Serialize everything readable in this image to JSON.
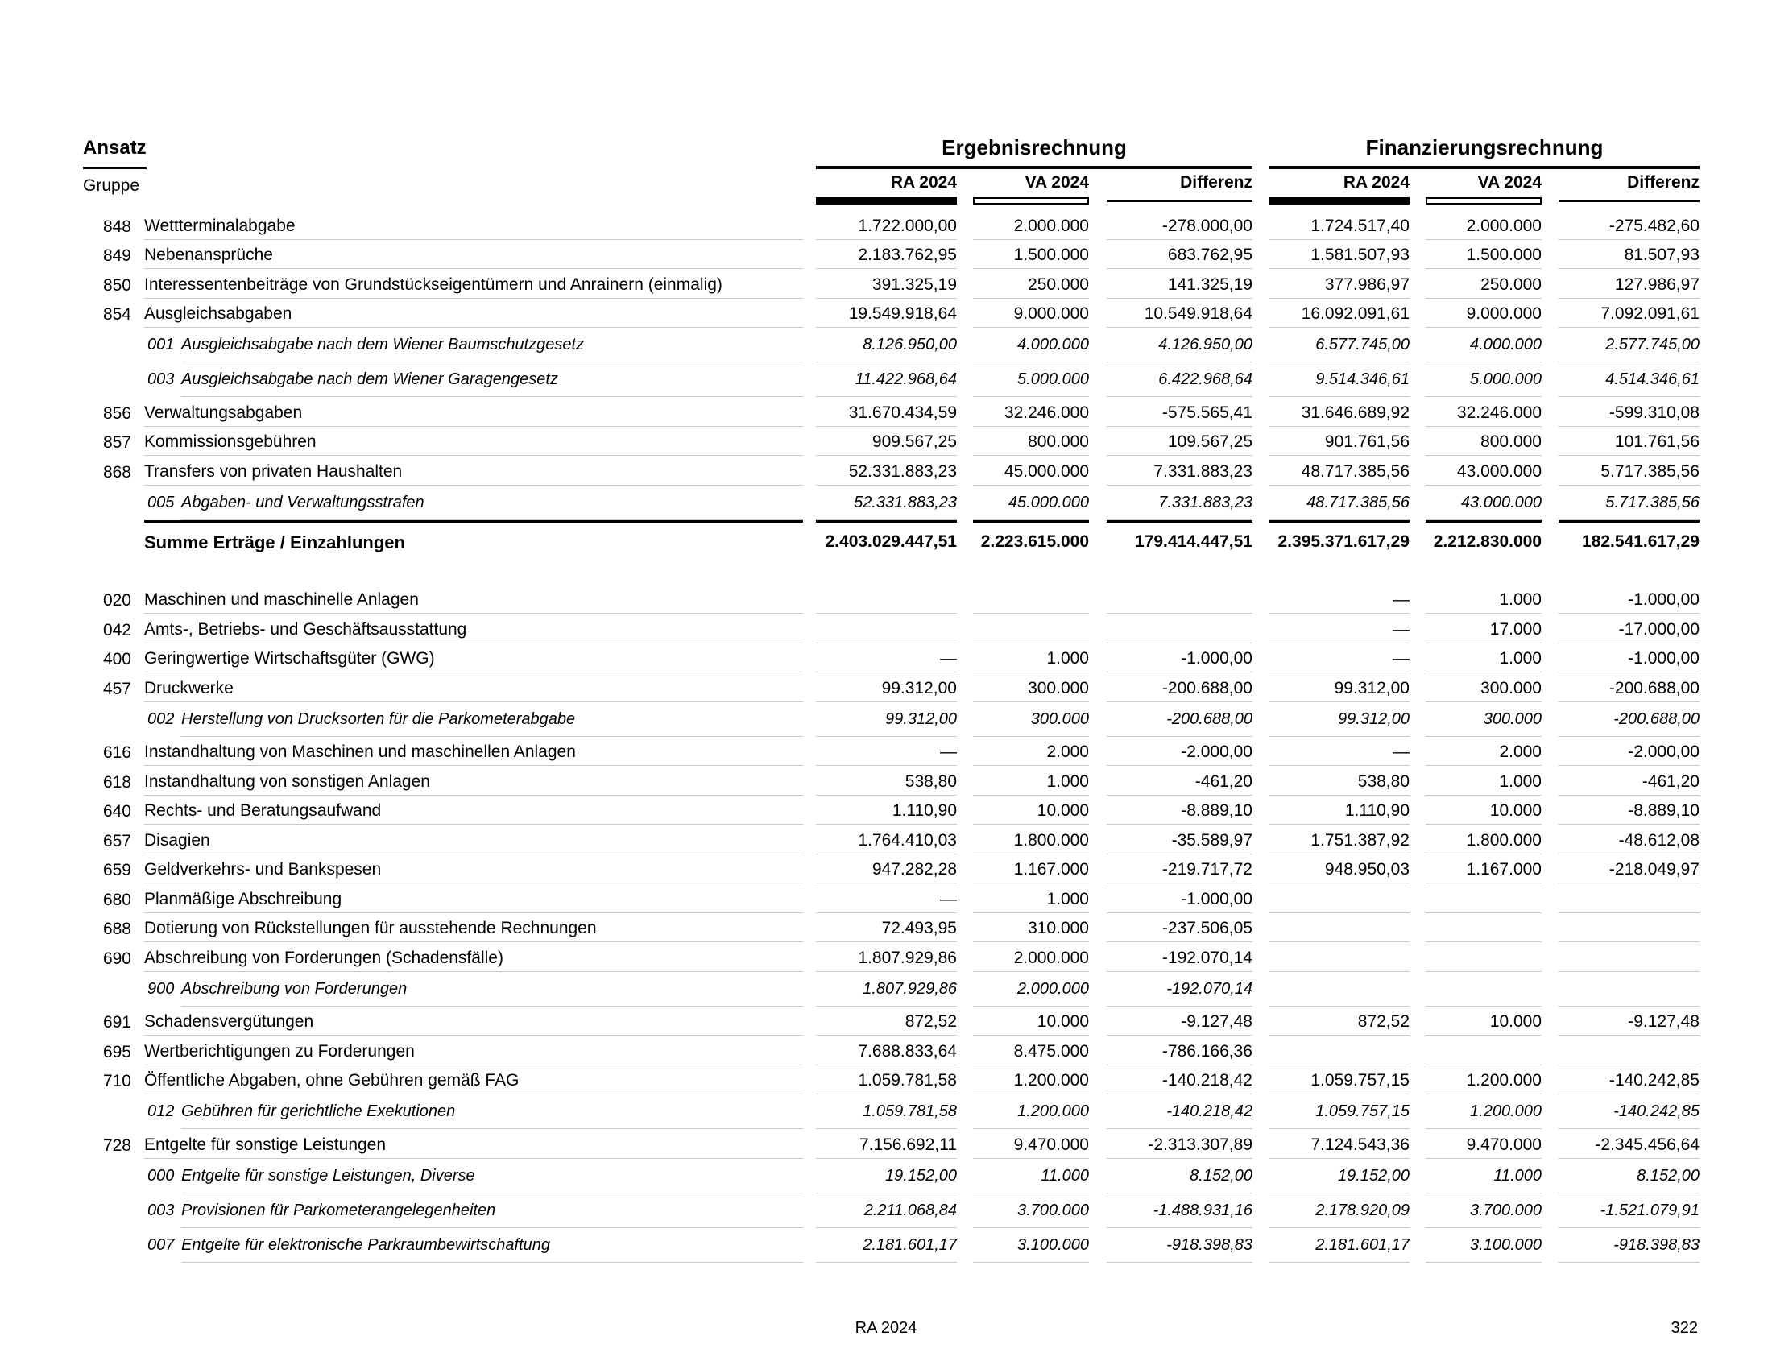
{
  "header": {
    "ansatz_label": "Ansatz",
    "gruppe_label": "Gruppe",
    "groups": [
      {
        "title": "Ergebnisrechnung"
      },
      {
        "title": "Finanzierungsrechnung"
      }
    ],
    "columns": [
      "RA 2024",
      "VA 2024",
      "Differenz"
    ],
    "indicators": {
      "ra": "filled-black-bar",
      "va": "outlined-white-bar",
      "diff": "thin-black-line"
    }
  },
  "table": {
    "rows": [
      {
        "type": "main",
        "code": "848",
        "label": "Wettterminalabgabe",
        "values": [
          "1.722.000,00",
          "2.000.000",
          "-278.000,00",
          "1.724.517,40",
          "2.000.000",
          "-275.482,60"
        ]
      },
      {
        "type": "main",
        "code": "849",
        "label": "Nebenansprüche",
        "values": [
          "2.183.762,95",
          "1.500.000",
          "683.762,95",
          "1.581.507,93",
          "1.500.000",
          "81.507,93"
        ]
      },
      {
        "type": "main",
        "code": "850",
        "label": "Interessentenbeiträge von Grundstückseigentümern und Anrainern (einmalig)",
        "values": [
          "391.325,19",
          "250.000",
          "141.325,19",
          "377.986,97",
          "250.000",
          "127.986,97"
        ]
      },
      {
        "type": "main",
        "code": "854",
        "label": "Ausgleichsabgaben",
        "values": [
          "19.549.918,64",
          "9.000.000",
          "10.549.918,64",
          "16.092.091,61",
          "9.000.000",
          "7.092.091,61"
        ]
      },
      {
        "type": "sub",
        "code": "001",
        "label": "Ausgleichsabgabe nach dem Wiener Baumschutzgesetz",
        "values": [
          "8.126.950,00",
          "4.000.000",
          "4.126.950,00",
          "6.577.745,00",
          "4.000.000",
          "2.577.745,00"
        ]
      },
      {
        "type": "sub",
        "code": "003",
        "label": "Ausgleichsabgabe nach dem Wiener Garagengesetz",
        "values": [
          "11.422.968,64",
          "5.000.000",
          "6.422.968,64",
          "9.514.346,61",
          "5.000.000",
          "4.514.346,61"
        ]
      },
      {
        "type": "main",
        "code": "856",
        "label": "Verwaltungsabgaben",
        "values": [
          "31.670.434,59",
          "32.246.000",
          "-575.565,41",
          "31.646.689,92",
          "32.246.000",
          "-599.310,08"
        ]
      },
      {
        "type": "main",
        "code": "857",
        "label": "Kommissionsgebühren",
        "values": [
          "909.567,25",
          "800.000",
          "109.567,25",
          "901.761,56",
          "800.000",
          "101.761,56"
        ]
      },
      {
        "type": "main",
        "code": "868",
        "label": "Transfers von privaten Haushalten",
        "values": [
          "52.331.883,23",
          "45.000.000",
          "7.331.883,23",
          "48.717.385,56",
          "43.000.000",
          "5.717.385,56"
        ]
      },
      {
        "type": "sub",
        "code": "005",
        "label": "Abgaben- und Verwaltungsstrafen",
        "values": [
          "52.331.883,23",
          "45.000.000",
          "7.331.883,23",
          "48.717.385,56",
          "43.000.000",
          "5.717.385,56"
        ]
      },
      {
        "type": "sum",
        "code": "",
        "label": "Summe Erträge / Einzahlungen",
        "values": [
          "2.403.029.447,51",
          "2.223.615.000",
          "179.414.447,51",
          "2.395.371.617,29",
          "2.212.830.000",
          "182.541.617,29"
        ]
      },
      {
        "type": "main",
        "code": "020",
        "label": "Maschinen und maschinelle Anlagen",
        "values": [
          "",
          "",
          "",
          "—",
          "1.000",
          "-1.000,00"
        ]
      },
      {
        "type": "main",
        "code": "042",
        "label": "Amts-, Betriebs- und Geschäftsausstattung",
        "values": [
          "",
          "",
          "",
          "—",
          "17.000",
          "-17.000,00"
        ]
      },
      {
        "type": "main",
        "code": "400",
        "label": "Geringwertige Wirtschaftsgüter (GWG)",
        "values": [
          "—",
          "1.000",
          "-1.000,00",
          "—",
          "1.000",
          "-1.000,00"
        ]
      },
      {
        "type": "main",
        "code": "457",
        "label": "Druckwerke",
        "values": [
          "99.312,00",
          "300.000",
          "-200.688,00",
          "99.312,00",
          "300.000",
          "-200.688,00"
        ]
      },
      {
        "type": "sub",
        "code": "002",
        "label": "Herstellung von Drucksorten für die Parkometerabgabe",
        "values": [
          "99.312,00",
          "300.000",
          "-200.688,00",
          "99.312,00",
          "300.000",
          "-200.688,00"
        ]
      },
      {
        "type": "main",
        "code": "616",
        "label": "Instandhaltung von Maschinen und maschinellen Anlagen",
        "values": [
          "—",
          "2.000",
          "-2.000,00",
          "—",
          "2.000",
          "-2.000,00"
        ]
      },
      {
        "type": "main",
        "code": "618",
        "label": "Instandhaltung von sonstigen Anlagen",
        "values": [
          "538,80",
          "1.000",
          "-461,20",
          "538,80",
          "1.000",
          "-461,20"
        ]
      },
      {
        "type": "main",
        "code": "640",
        "label": "Rechts- und Beratungsaufwand",
        "values": [
          "1.110,90",
          "10.000",
          "-8.889,10",
          "1.110,90",
          "10.000",
          "-8.889,10"
        ]
      },
      {
        "type": "main",
        "code": "657",
        "label": "Disagien",
        "values": [
          "1.764.410,03",
          "1.800.000",
          "-35.589,97",
          "1.751.387,92",
          "1.800.000",
          "-48.612,08"
        ]
      },
      {
        "type": "main",
        "code": "659",
        "label": "Geldverkehrs- und Bankspesen",
        "values": [
          "947.282,28",
          "1.167.000",
          "-219.717,72",
          "948.950,03",
          "1.167.000",
          "-218.049,97"
        ]
      },
      {
        "type": "main",
        "code": "680",
        "label": "Planmäßige Abschreibung",
        "values": [
          "—",
          "1.000",
          "-1.000,00",
          "",
          "",
          ""
        ]
      },
      {
        "type": "main",
        "code": "688",
        "label": "Dotierung von Rückstellungen für ausstehende Rechnungen",
        "values": [
          "72.493,95",
          "310.000",
          "-237.506,05",
          "",
          "",
          ""
        ]
      },
      {
        "type": "main",
        "code": "690",
        "label": "Abschreibung von Forderungen (Schadensfälle)",
        "values": [
          "1.807.929,86",
          "2.000.000",
          "-192.070,14",
          "",
          "",
          ""
        ]
      },
      {
        "type": "sub",
        "code": "900",
        "label": "Abschreibung von Forderungen",
        "values": [
          "1.807.929,86",
          "2.000.000",
          "-192.070,14",
          "",
          "",
          ""
        ]
      },
      {
        "type": "main",
        "code": "691",
        "label": "Schadensvergütungen",
        "values": [
          "872,52",
          "10.000",
          "-9.127,48",
          "872,52",
          "10.000",
          "-9.127,48"
        ]
      },
      {
        "type": "main",
        "code": "695",
        "label": "Wertberichtigungen zu Forderungen",
        "values": [
          "7.688.833,64",
          "8.475.000",
          "-786.166,36",
          "",
          "",
          ""
        ]
      },
      {
        "type": "main",
        "code": "710",
        "label": "Öffentliche Abgaben, ohne Gebühren gemäß FAG",
        "values": [
          "1.059.781,58",
          "1.200.000",
          "-140.218,42",
          "1.059.757,15",
          "1.200.000",
          "-140.242,85"
        ]
      },
      {
        "type": "sub",
        "code": "012",
        "label": "Gebühren für gerichtliche Exekutionen",
        "values": [
          "1.059.781,58",
          "1.200.000",
          "-140.218,42",
          "1.059.757,15",
          "1.200.000",
          "-140.242,85"
        ]
      },
      {
        "type": "main",
        "code": "728",
        "label": "Entgelte für sonstige Leistungen",
        "values": [
          "7.156.692,11",
          "9.470.000",
          "-2.313.307,89",
          "7.124.543,36",
          "9.470.000",
          "-2.345.456,64"
        ]
      },
      {
        "type": "sub",
        "code": "000",
        "label": "Entgelte für sonstige Leistungen, Diverse",
        "values": [
          "19.152,00",
          "11.000",
          "8.152,00",
          "19.152,00",
          "11.000",
          "8.152,00"
        ]
      },
      {
        "type": "sub",
        "code": "003",
        "label": "Provisionen für Parkometerangelegenheiten",
        "values": [
          "2.211.068,84",
          "3.700.000",
          "-1.488.931,16",
          "2.178.920,09",
          "3.700.000",
          "-1.521.079,91"
        ]
      },
      {
        "type": "sub",
        "code": "007",
        "label": "Entgelte für elektronische Parkraumbewirtschaftung",
        "values": [
          "2.181.601,17",
          "3.100.000",
          "-918.398,83",
          "2.181.601,17",
          "3.100.000",
          "-918.398,83"
        ]
      }
    ]
  },
  "footer": {
    "center": "RA 2024",
    "page_number": "322"
  },
  "colors": {
    "text": "#000000",
    "row_line": "#c9c9c9",
    "bar_fill": "#000000"
  }
}
